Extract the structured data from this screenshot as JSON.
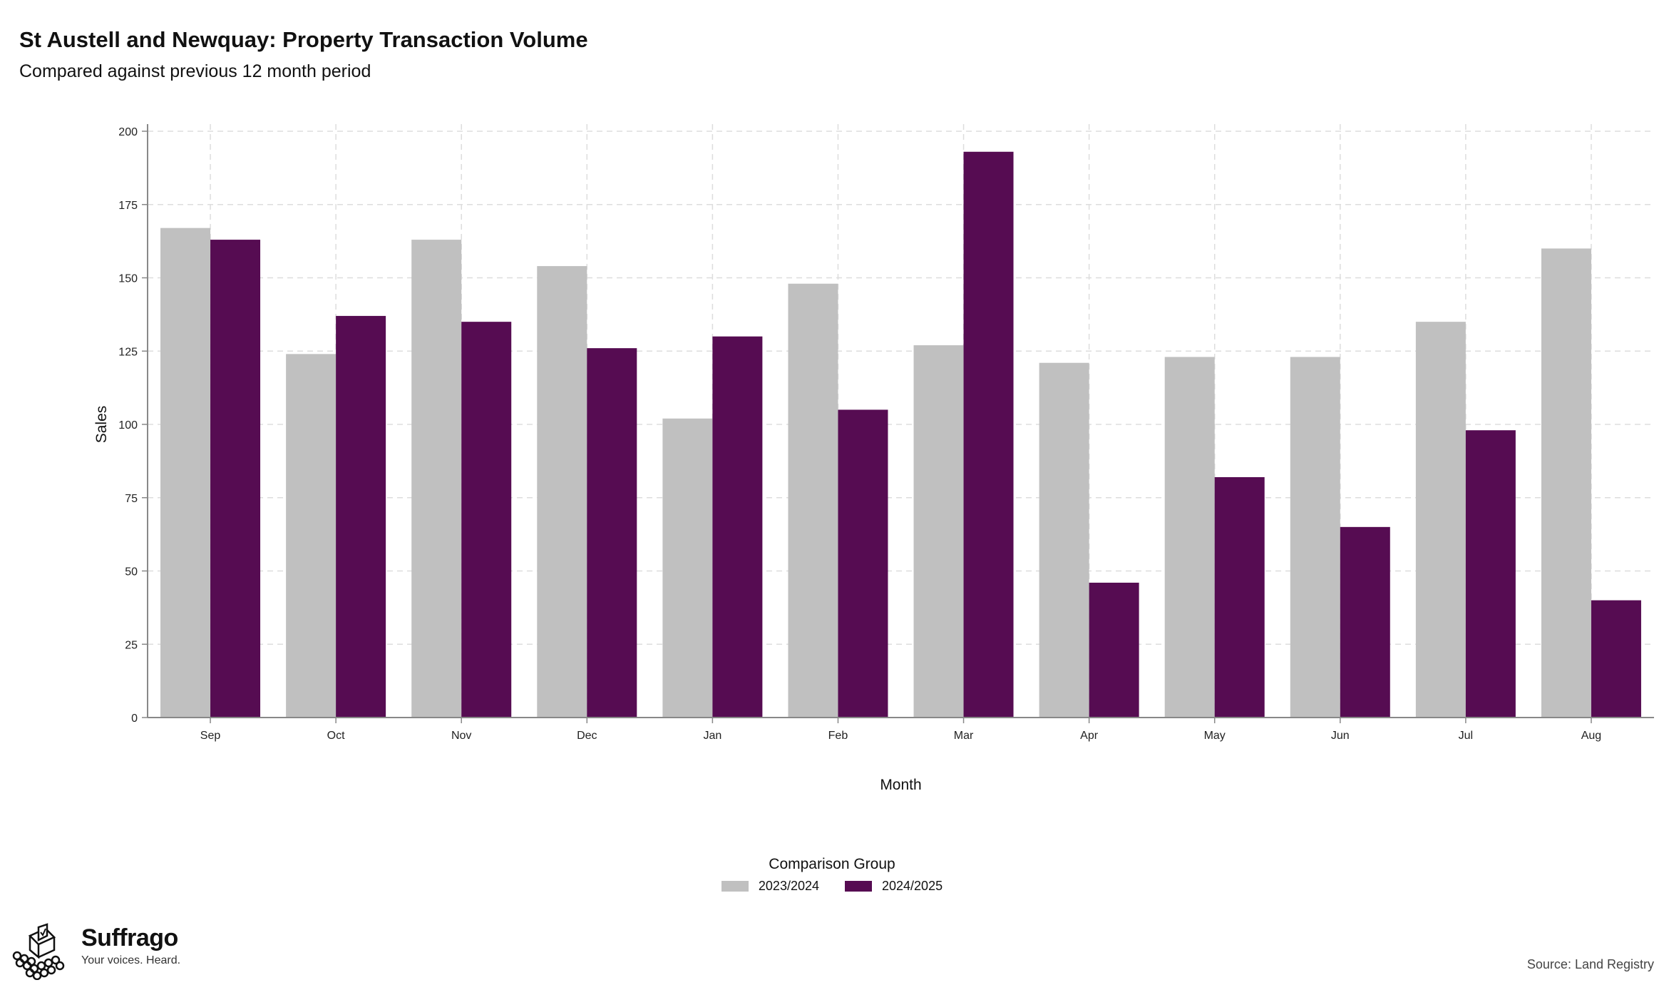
{
  "header": {
    "title": "St Austell and Newquay: Property Transaction Volume",
    "subtitle": "Compared against previous 12 month period"
  },
  "chart_data": {
    "type": "bar",
    "title": "St Austell and Newquay: Property Transaction Volume",
    "subtitle": "Compared against previous 12 month period",
    "xlabel": "Month",
    "ylabel": "Sales",
    "categories": [
      "Sep",
      "Oct",
      "Nov",
      "Dec",
      "Jan",
      "Feb",
      "Mar",
      "Apr",
      "May",
      "Jun",
      "Jul",
      "Aug"
    ],
    "series": [
      {
        "name": "2023/2024",
        "color": "#c0c0c0",
        "values": [
          167,
          124,
          163,
          154,
          102,
          148,
          127,
          121,
          123,
          123,
          135,
          160
        ]
      },
      {
        "name": "2024/2025",
        "color": "#560c52",
        "values": [
          163,
          137,
          135,
          126,
          130,
          105,
          193,
          46,
          82,
          65,
          98,
          40
        ]
      }
    ],
    "ylim": [
      0,
      200
    ],
    "yticks": [
      0,
      25,
      50,
      75,
      100,
      125,
      150,
      175,
      200
    ],
    "grid": true,
    "legend_title": "Comparison Group",
    "legend_position": "bottom"
  },
  "branding": {
    "logo_name": "Suffrago",
    "logo_tagline": "Your voices. Heard.",
    "logo_icon": "ballot-box-icon"
  },
  "footer": {
    "source": "Source: Land Registry"
  }
}
